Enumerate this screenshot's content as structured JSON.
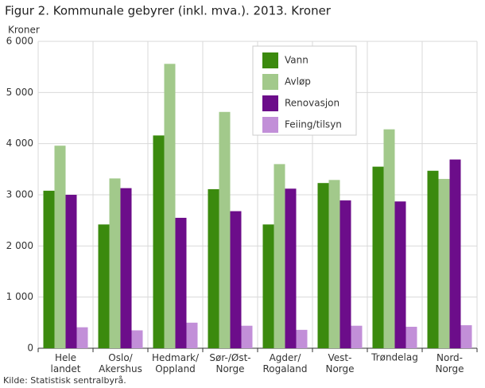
{
  "chart_data": {
    "type": "bar",
    "title": "Figur 2. Kommunale gebyrer (inkl. mva.). 2013. Kroner",
    "y_label": "Kroner",
    "source": "Kilde: Statistisk sentralbyrå.",
    "categories": [
      "Hele\nlandet",
      "Oslo/\nAkershus",
      "Hedmark/\nOppland",
      "Sør-/Øst-\nNorge",
      "Agder/\nRogaland",
      "Vest-\nNorge",
      "Trøndelag",
      "Nord-\nNorge"
    ],
    "series": [
      {
        "name": "Vann",
        "color": "#3b8a0e",
        "values": [
          3080,
          2420,
          4160,
          3110,
          2420,
          3230,
          3550,
          3470
        ]
      },
      {
        "name": "Avløp",
        "color": "#a2c98b",
        "values": [
          3960,
          3320,
          5560,
          4620,
          3600,
          3290,
          4280,
          3310
        ]
      },
      {
        "name": "Renovasjon",
        "color": "#6c0d8a",
        "values": [
          3000,
          3130,
          2550,
          2680,
          3120,
          2890,
          2870,
          3690
        ]
      },
      {
        "name": "Feiing/tilsyn",
        "color": "#c28fd8",
        "values": [
          410,
          350,
          500,
          440,
          360,
          440,
          420,
          450
        ]
      }
    ],
    "ylim": [
      0,
      6000
    ],
    "yticks": [
      0,
      {
        "value": 1000,
        "label": "1 000"
      },
      {
        "value": 2000,
        "label": "2 000"
      },
      {
        "value": 3000,
        "label": "3 000"
      },
      {
        "value": 4000,
        "label": "4 000"
      },
      {
        "value": 5000,
        "label": "5 000"
      },
      {
        "value": 6000,
        "label": "6 000"
      }
    ],
    "grid": true
  }
}
